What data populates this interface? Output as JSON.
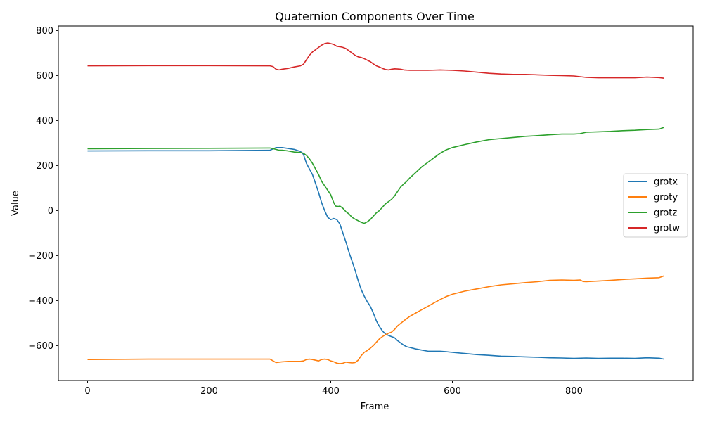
{
  "chart_data": {
    "type": "line",
    "title": "Quaternion Components Over Time",
    "xlabel": "Frame",
    "ylabel": "Value",
    "xlim": [
      -48,
      996
    ],
    "ylim": [
      -755,
      820
    ],
    "xticks": [
      0,
      200,
      400,
      600,
      800
    ],
    "yticks": [
      -600,
      -400,
      -200,
      0,
      200,
      400,
      600,
      800
    ],
    "legend_position": "center-right",
    "grid": false,
    "series": [
      {
        "name": "grotx",
        "color": "#1f77b4",
        "points": [
          [
            0,
            265
          ],
          [
            100,
            266
          ],
          [
            200,
            266
          ],
          [
            300,
            268
          ],
          [
            310,
            280
          ],
          [
            320,
            280
          ],
          [
            330,
            276
          ],
          [
            340,
            272
          ],
          [
            350,
            263
          ],
          [
            355,
            250
          ],
          [
            360,
            210
          ],
          [
            365,
            185
          ],
          [
            370,
            160
          ],
          [
            375,
            120
          ],
          [
            380,
            80
          ],
          [
            385,
            35
          ],
          [
            390,
            0
          ],
          [
            395,
            -30
          ],
          [
            400,
            -40
          ],
          [
            405,
            -35
          ],
          [
            410,
            -40
          ],
          [
            415,
            -60
          ],
          [
            420,
            -100
          ],
          [
            425,
            -140
          ],
          [
            430,
            -185
          ],
          [
            435,
            -225
          ],
          [
            440,
            -265
          ],
          [
            445,
            -310
          ],
          [
            450,
            -350
          ],
          [
            455,
            -380
          ],
          [
            460,
            -405
          ],
          [
            465,
            -425
          ],
          [
            470,
            -455
          ],
          [
            475,
            -490
          ],
          [
            480,
            -515
          ],
          [
            485,
            -535
          ],
          [
            490,
            -548
          ],
          [
            495,
            -555
          ],
          [
            500,
            -560
          ],
          [
            505,
            -565
          ],
          [
            510,
            -578
          ],
          [
            515,
            -588
          ],
          [
            520,
            -598
          ],
          [
            525,
            -605
          ],
          [
            530,
            -608
          ],
          [
            540,
            -615
          ],
          [
            550,
            -620
          ],
          [
            560,
            -625
          ],
          [
            580,
            -625
          ],
          [
            590,
            -627
          ],
          [
            600,
            -630
          ],
          [
            620,
            -635
          ],
          [
            640,
            -640
          ],
          [
            660,
            -643
          ],
          [
            680,
            -647
          ],
          [
            700,
            -648
          ],
          [
            720,
            -650
          ],
          [
            740,
            -652
          ],
          [
            760,
            -654
          ],
          [
            780,
            -655
          ],
          [
            800,
            -657
          ],
          [
            820,
            -655
          ],
          [
            840,
            -657
          ],
          [
            860,
            -656
          ],
          [
            880,
            -656
          ],
          [
            900,
            -657
          ],
          [
            920,
            -654
          ],
          [
            940,
            -656
          ],
          [
            948,
            -660
          ]
        ]
      },
      {
        "name": "groty",
        "color": "#ff7f0e",
        "points": [
          [
            0,
            -662
          ],
          [
            100,
            -660
          ],
          [
            200,
            -660
          ],
          [
            300,
            -660
          ],
          [
            310,
            -675
          ],
          [
            320,
            -672
          ],
          [
            330,
            -670
          ],
          [
            340,
            -670
          ],
          [
            350,
            -670
          ],
          [
            355,
            -668
          ],
          [
            360,
            -662
          ],
          [
            365,
            -660
          ],
          [
            370,
            -662
          ],
          [
            375,
            -665
          ],
          [
            380,
            -668
          ],
          [
            385,
            -662
          ],
          [
            390,
            -660
          ],
          [
            395,
            -662
          ],
          [
            400,
            -668
          ],
          [
            405,
            -672
          ],
          [
            410,
            -678
          ],
          [
            415,
            -680
          ],
          [
            420,
            -678
          ],
          [
            425,
            -673
          ],
          [
            430,
            -675
          ],
          [
            435,
            -677
          ],
          [
            440,
            -675
          ],
          [
            445,
            -665
          ],
          [
            450,
            -645
          ],
          [
            455,
            -630
          ],
          [
            460,
            -622
          ],
          [
            465,
            -612
          ],
          [
            470,
            -600
          ],
          [
            475,
            -585
          ],
          [
            480,
            -570
          ],
          [
            485,
            -560
          ],
          [
            490,
            -552
          ],
          [
            495,
            -545
          ],
          [
            500,
            -540
          ],
          [
            505,
            -528
          ],
          [
            510,
            -512
          ],
          [
            520,
            -490
          ],
          [
            530,
            -470
          ],
          [
            540,
            -455
          ],
          [
            550,
            -440
          ],
          [
            560,
            -425
          ],
          [
            570,
            -410
          ],
          [
            580,
            -395
          ],
          [
            590,
            -382
          ],
          [
            600,
            -372
          ],
          [
            620,
            -358
          ],
          [
            640,
            -348
          ],
          [
            660,
            -338
          ],
          [
            680,
            -330
          ],
          [
            700,
            -325
          ],
          [
            720,
            -320
          ],
          [
            740,
            -316
          ],
          [
            760,
            -310
          ],
          [
            780,
            -308
          ],
          [
            800,
            -310
          ],
          [
            810,
            -308
          ],
          [
            815,
            -315
          ],
          [
            820,
            -316
          ],
          [
            840,
            -313
          ],
          [
            860,
            -310
          ],
          [
            880,
            -306
          ],
          [
            900,
            -303
          ],
          [
            920,
            -300
          ],
          [
            940,
            -298
          ],
          [
            948,
            -290
          ]
        ]
      },
      {
        "name": "grotz",
        "color": "#2ca02c",
        "points": [
          [
            0,
            275
          ],
          [
            100,
            276
          ],
          [
            200,
            277
          ],
          [
            300,
            278
          ],
          [
            310,
            272
          ],
          [
            315,
            268
          ],
          [
            320,
            268
          ],
          [
            330,
            265
          ],
          [
            340,
            260
          ],
          [
            350,
            258
          ],
          [
            355,
            255
          ],
          [
            360,
            245
          ],
          [
            365,
            230
          ],
          [
            370,
            210
          ],
          [
            375,
            185
          ],
          [
            380,
            160
          ],
          [
            385,
            130
          ],
          [
            390,
            110
          ],
          [
            395,
            90
          ],
          [
            400,
            70
          ],
          [
            405,
            35
          ],
          [
            408,
            20
          ],
          [
            412,
            18
          ],
          [
            415,
            20
          ],
          [
            420,
            10
          ],
          [
            425,
            -5
          ],
          [
            430,
            -15
          ],
          [
            435,
            -30
          ],
          [
            440,
            -38
          ],
          [
            445,
            -45
          ],
          [
            450,
            -52
          ],
          [
            455,
            -57
          ],
          [
            460,
            -50
          ],
          [
            465,
            -40
          ],
          [
            470,
            -25
          ],
          [
            475,
            -10
          ],
          [
            480,
            0
          ],
          [
            485,
            15
          ],
          [
            490,
            30
          ],
          [
            495,
            40
          ],
          [
            500,
            50
          ],
          [
            505,
            65
          ],
          [
            510,
            85
          ],
          [
            515,
            105
          ],
          [
            520,
            118
          ],
          [
            525,
            130
          ],
          [
            530,
            145
          ],
          [
            540,
            170
          ],
          [
            550,
            195
          ],
          [
            560,
            215
          ],
          [
            570,
            235
          ],
          [
            580,
            255
          ],
          [
            590,
            270
          ],
          [
            600,
            280
          ],
          [
            620,
            293
          ],
          [
            640,
            305
          ],
          [
            660,
            315
          ],
          [
            680,
            320
          ],
          [
            700,
            325
          ],
          [
            720,
            330
          ],
          [
            740,
            333
          ],
          [
            760,
            337
          ],
          [
            780,
            340
          ],
          [
            800,
            340
          ],
          [
            810,
            342
          ],
          [
            820,
            348
          ],
          [
            840,
            350
          ],
          [
            860,
            352
          ],
          [
            880,
            355
          ],
          [
            900,
            357
          ],
          [
            920,
            360
          ],
          [
            940,
            362
          ],
          [
            948,
            370
          ]
        ]
      },
      {
        "name": "grotw",
        "color": "#d62728",
        "points": [
          [
            0,
            643
          ],
          [
            100,
            644
          ],
          [
            200,
            644
          ],
          [
            300,
            643
          ],
          [
            305,
            640
          ],
          [
            310,
            628
          ],
          [
            315,
            625
          ],
          [
            320,
            628
          ],
          [
            330,
            632
          ],
          [
            340,
            638
          ],
          [
            350,
            643
          ],
          [
            355,
            650
          ],
          [
            360,
            670
          ],
          [
            365,
            690
          ],
          [
            370,
            705
          ],
          [
            375,
            715
          ],
          [
            380,
            725
          ],
          [
            385,
            735
          ],
          [
            390,
            742
          ],
          [
            395,
            745
          ],
          [
            400,
            742
          ],
          [
            405,
            738
          ],
          [
            410,
            730
          ],
          [
            415,
            728
          ],
          [
            420,
            725
          ],
          [
            425,
            720
          ],
          [
            430,
            710
          ],
          [
            435,
            700
          ],
          [
            440,
            690
          ],
          [
            445,
            683
          ],
          [
            450,
            680
          ],
          [
            455,
            675
          ],
          [
            460,
            668
          ],
          [
            465,
            662
          ],
          [
            470,
            652
          ],
          [
            475,
            643
          ],
          [
            480,
            638
          ],
          [
            485,
            632
          ],
          [
            490,
            627
          ],
          [
            495,
            625
          ],
          [
            500,
            628
          ],
          [
            505,
            630
          ],
          [
            510,
            629
          ],
          [
            515,
            628
          ],
          [
            520,
            625
          ],
          [
            530,
            623
          ],
          [
            540,
            623
          ],
          [
            560,
            623
          ],
          [
            580,
            625
          ],
          [
            600,
            623
          ],
          [
            620,
            620
          ],
          [
            640,
            615
          ],
          [
            660,
            610
          ],
          [
            680,
            607
          ],
          [
            700,
            605
          ],
          [
            720,
            605
          ],
          [
            740,
            603
          ],
          [
            760,
            601
          ],
          [
            780,
            600
          ],
          [
            800,
            598
          ],
          [
            810,
            595
          ],
          [
            820,
            592
          ],
          [
            840,
            590
          ],
          [
            860,
            590
          ],
          [
            880,
            590
          ],
          [
            900,
            590
          ],
          [
            920,
            593
          ],
          [
            940,
            591
          ],
          [
            948,
            588
          ]
        ]
      }
    ]
  }
}
